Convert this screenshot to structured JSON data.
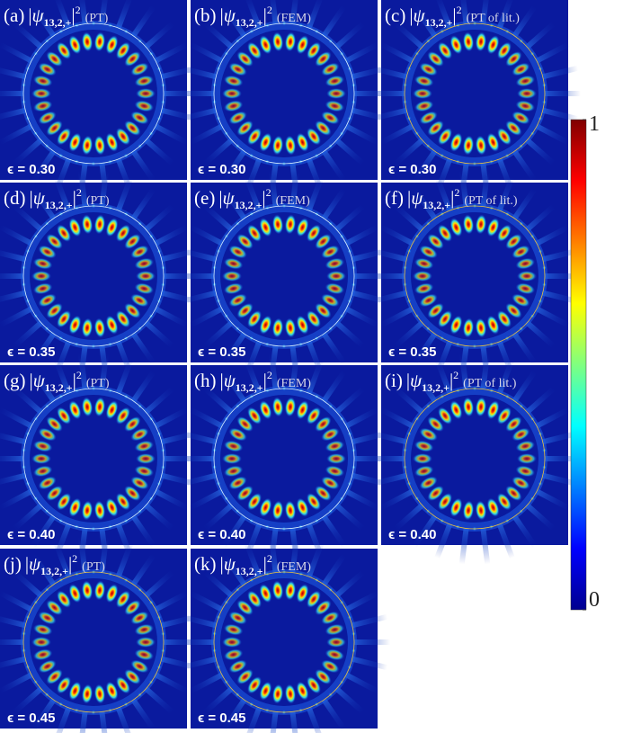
{
  "state": {
    "symbol": "ψ",
    "subscript": "13,2,+",
    "power": "2"
  },
  "panels": [
    {
      "label": "(a)",
      "method": "(PT)",
      "epsilon": "ϵ = 0.30"
    },
    {
      "label": "(b)",
      "method": "(FEM)",
      "epsilon": "ϵ = 0.30"
    },
    {
      "label": "(c)",
      "method": "(PT of lit.)",
      "epsilon": "ϵ = 0.30"
    },
    {
      "label": "(d)",
      "method": "(PT)",
      "epsilon": "ϵ = 0.35"
    },
    {
      "label": "(e)",
      "method": "(FEM)",
      "epsilon": "ϵ = 0.35"
    },
    {
      "label": "(f)",
      "method": "(PT of lit.)",
      "epsilon": "ϵ = 0.35"
    },
    {
      "label": "(g)",
      "method": "(PT)",
      "epsilon": "ϵ = 0.40"
    },
    {
      "label": "(h)",
      "method": "(FEM)",
      "epsilon": "ϵ = 0.40"
    },
    {
      "label": "(i)",
      "method": "(PT of lit.)",
      "epsilon": "ϵ = 0.40"
    },
    {
      "label": "(j)",
      "method": "(PT)",
      "epsilon": "ϵ = 0.45"
    },
    {
      "label": "(k)",
      "method": "(FEM)",
      "epsilon": "ϵ = 0.45"
    }
  ],
  "colorbar": {
    "lim": [
      0,
      1
    ],
    "ticks": [
      0,
      1
    ]
  }
}
